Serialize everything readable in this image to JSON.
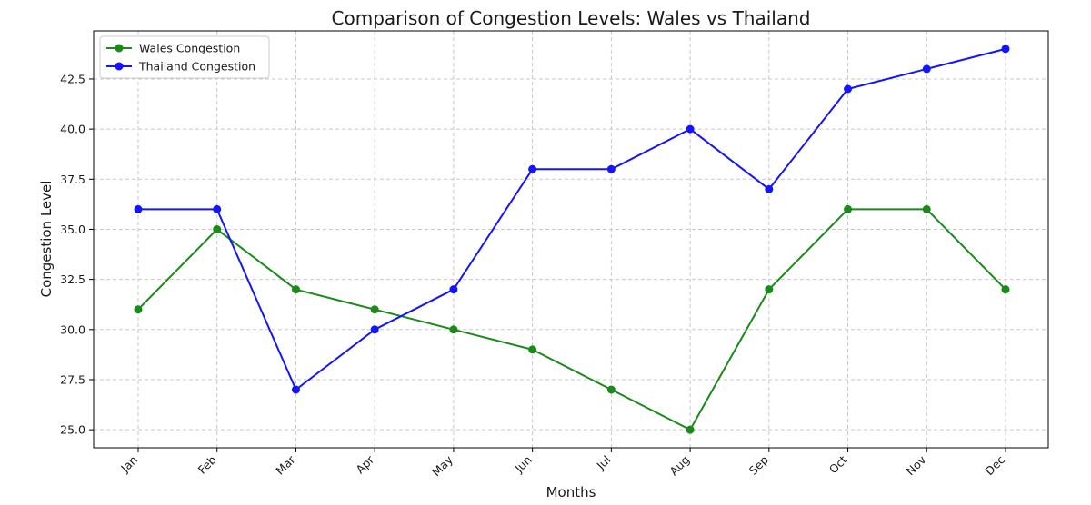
{
  "chart_data": {
    "type": "line",
    "title": "Comparison of Congestion Levels: Wales vs Thailand",
    "xlabel": "Months",
    "ylabel": "Congestion Level",
    "categories": [
      "Jan",
      "Feb",
      "Mar",
      "Apr",
      "May",
      "Jun",
      "Jul",
      "Aug",
      "Sep",
      "Oct",
      "Nov",
      "Dec"
    ],
    "series": [
      {
        "name": "Wales Congestion",
        "color": "#1a8a1a",
        "values": [
          31,
          35,
          32,
          31,
          30,
          29,
          27,
          25,
          32,
          36,
          36,
          32
        ]
      },
      {
        "name": "Thailand Congestion",
        "color": "#1414ff",
        "values": [
          36,
          36,
          27,
          30,
          32,
          38,
          38,
          40,
          37,
          42,
          43,
          44
        ]
      }
    ],
    "ylim": [
      24.1,
      44.9
    ],
    "yticks": [
      "25.0",
      "27.5",
      "30.0",
      "32.5",
      "35.0",
      "37.5",
      "40.0",
      "42.5"
    ],
    "grid": true,
    "legend_position": "top-left",
    "x_tick_rotation": "45deg"
  }
}
